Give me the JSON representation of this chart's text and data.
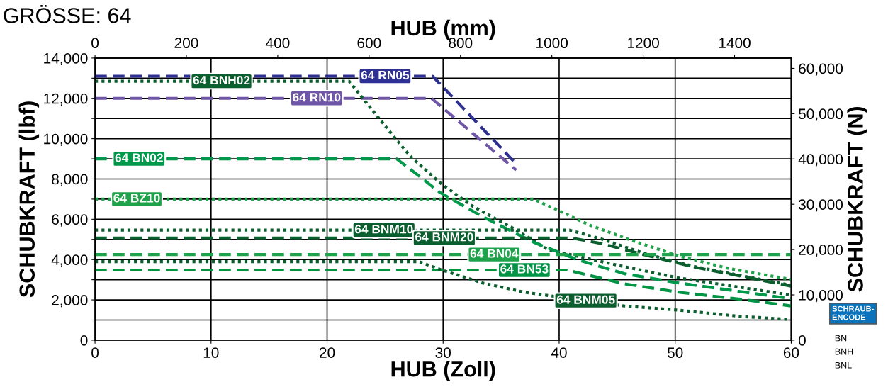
{
  "chart_data": {
    "type": "line",
    "title": "GRÖSSE: 64",
    "xlabel": "HUB (Zoll)",
    "ylabel": "SCHUBKRAFT (lbf)",
    "y2label": "SCHUBKRAFT (N)",
    "x2label": "HUB (mm)",
    "xlim": [
      0,
      60
    ],
    "xticks": [
      0,
      10,
      20,
      30,
      40,
      50,
      60
    ],
    "x2lim": [
      0,
      1524
    ],
    "x2ticks": [
      0,
      200,
      400,
      600,
      800,
      1000,
      1200,
      1400
    ],
    "ylim": [
      0,
      14000
    ],
    "yticks": [
      {
        "value": 0,
        "label": "0"
      },
      {
        "value": 1000,
        "label": null
      },
      {
        "value": 2000,
        "label": "2,000"
      },
      {
        "value": 3000,
        "label": null
      },
      {
        "value": 4000,
        "label": "4,000"
      },
      {
        "value": 5000,
        "label": null
      },
      {
        "value": 6000,
        "label": "6,000"
      },
      {
        "value": 7000,
        "label": null
      },
      {
        "value": 8000,
        "label": "8,000"
      },
      {
        "value": 9000,
        "label": null
      },
      {
        "value": 10000,
        "label": "10,000"
      },
      {
        "value": 11000,
        "label": null
      },
      {
        "value": 12000,
        "label": "12,000"
      },
      {
        "value": 13000,
        "label": null
      },
      {
        "value": 14000,
        "label": "14,000"
      }
    ],
    "y2lim": [
      0,
      62275
    ],
    "y2ticks": [
      {
        "value": 0,
        "label": "0"
      },
      {
        "value": 10000,
        "label": "10,000"
      },
      {
        "value": 20000,
        "label": "20,000"
      },
      {
        "value": 30000,
        "label": "30,000"
      },
      {
        "value": 40000,
        "label": "40,000"
      },
      {
        "value": 50000,
        "label": "50,000"
      },
      {
        "value": 60000,
        "label": "60,000"
      }
    ],
    "grid": true,
    "legend": false,
    "marker": "none",
    "series": [
      {
        "color": "#2e3192",
        "line_style": "dashed",
        "x": [
          0,
          29.1,
          36.1
        ],
        "values": [
          13100,
          13100,
          8870
        ]
      },
      {
        "color": "#7056a6",
        "line_style": "dashed",
        "x": [
          0,
          29.0,
          36.3
        ],
        "values": [
          12000,
          12000,
          8440
        ]
      },
      {
        "color": "#0b5e2e",
        "line_style": "dotted",
        "x": [
          0,
          21.9,
          23.6,
          26.0,
          27.2,
          29.9,
          32.6,
          36.2,
          39.0,
          45.6,
          50.3,
          60
        ],
        "values": [
          12850,
          12850,
          11630,
          9930,
          9110,
          7730,
          6630,
          5500,
          4500,
          3650,
          3090,
          2240
        ]
      },
      {
        "color": "#00994c",
        "line_style": "dashed",
        "x": [
          0,
          26.0,
          27.9,
          29.7,
          33.4,
          37.8,
          41.5,
          45.6,
          50.3,
          60
        ],
        "values": [
          9000,
          9000,
          8160,
          7340,
          6130,
          4860,
          4010,
          3300,
          2840,
          2060
        ]
      },
      {
        "color": "#1fa34a",
        "line_style": "dotted",
        "x": [
          0,
          37.8,
          39.9,
          42.5,
          46.2,
          50.3,
          54.7,
          60
        ],
        "values": [
          7000,
          7000,
          6450,
          5740,
          4960,
          4180,
          3550,
          3010
        ]
      },
      {
        "color": "#0b5e2e",
        "line_style": "dotted",
        "x": [
          0,
          40.9,
          43.6,
          47.6,
          51.7,
          55.8,
          60
        ],
        "values": [
          5460,
          5460,
          5030,
          4260,
          3650,
          3190,
          2730
        ]
      },
      {
        "color": "#0b5e2e",
        "line_style": "dashed",
        "x": [
          0,
          41.1,
          43.6,
          47.6,
          51.7,
          55.8,
          60
        ],
        "values": [
          5070,
          5070,
          4800,
          4200,
          3620,
          3160,
          2680
        ]
      },
      {
        "color": "#1fa34a",
        "line_style": "dashed",
        "x": [
          0,
          60
        ],
        "values": [
          4250,
          4250
        ]
      },
      {
        "color": "#009444",
        "line_style": "dashed",
        "x": [
          0,
          40.7,
          45.6,
          50.3,
          55.8,
          60
        ],
        "values": [
          3480,
          3480,
          2800,
          2380,
          2020,
          1700
        ]
      },
      {
        "color": "#0b5e2e",
        "line_style": "dotted",
        "x": [
          0,
          27.9,
          29.9,
          33.4,
          37.0,
          45.6,
          50.3,
          55.8,
          60
        ],
        "values": [
          3900,
          3900,
          3480,
          2840,
          2380,
          1700,
          1490,
          1170,
          1030
        ]
      }
    ],
    "annotations": [
      {
        "text": "64 RN05",
        "x": 25,
        "y": 13100
      },
      {
        "text": "64 RN10",
        "x": 19.1,
        "y": 12000
      },
      {
        "text": "64 BNH02",
        "x": 10.9,
        "y": 12850
      },
      {
        "text": "64 BN02",
        "x": 3.8,
        "y": 9000
      },
      {
        "text": "64 BZ10",
        "x": 3.6,
        "y": 7000
      },
      {
        "text": "64 BNM10",
        "x": 24.9,
        "y": 5460
      },
      {
        "text": "64 BNM20",
        "x": 30.1,
        "y": 5070
      },
      {
        "text": "64 BN04",
        "x": 34.4,
        "y": 4250
      },
      {
        "text": "64 BN53",
        "x": 37.0,
        "y": 3480
      },
      {
        "text": "64 BNM05",
        "x": 42.3,
        "y": 1961
      },
      "SCHRAUB-\nENCODE",
      "BN",
      "BNH",
      "BNL"
    ]
  }
}
